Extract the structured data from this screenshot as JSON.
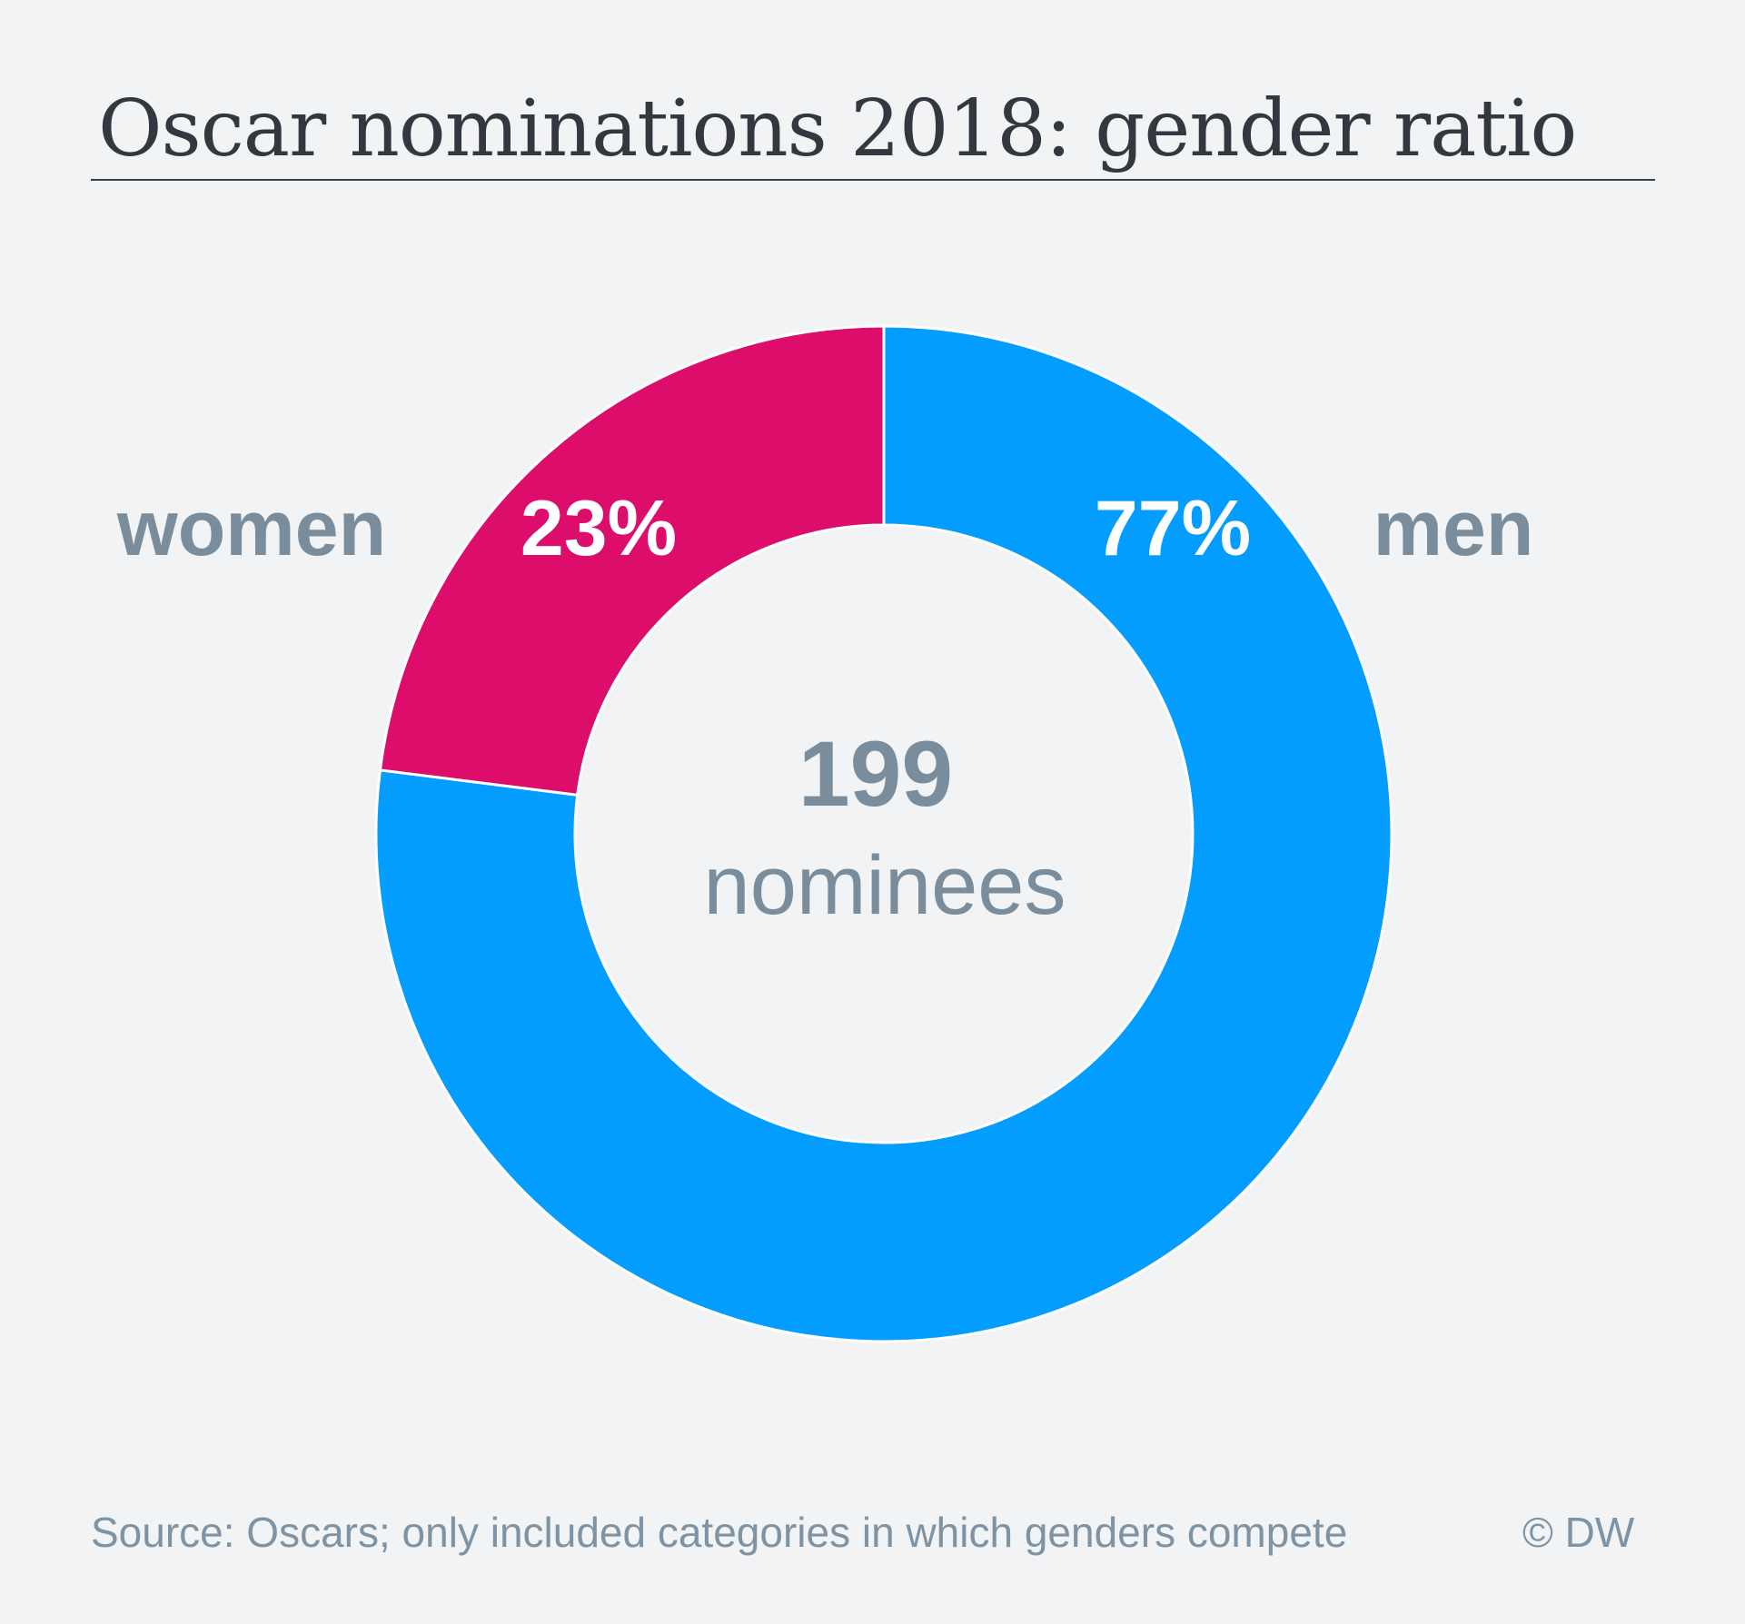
{
  "title": "Oscar nominations 2018: gender ratio",
  "colors": {
    "women": "#dc0d6b",
    "men": "#029dfe",
    "label": "#798d9c",
    "background": "#f1f3f5"
  },
  "chart_data": {
    "type": "pie",
    "variant": "donut",
    "title": "Oscar nominations 2018: gender ratio",
    "slices": [
      {
        "name": "women",
        "value": 23,
        "label": "23%",
        "color": "#dc0d6b"
      },
      {
        "name": "men",
        "value": 77,
        "label": "77%",
        "color": "#029dfe"
      }
    ],
    "center_value": "199",
    "center_label": "nominees"
  },
  "footer": {
    "source": "Source: Oscars; only included categories in which genders compete",
    "copyright": "© DW"
  }
}
